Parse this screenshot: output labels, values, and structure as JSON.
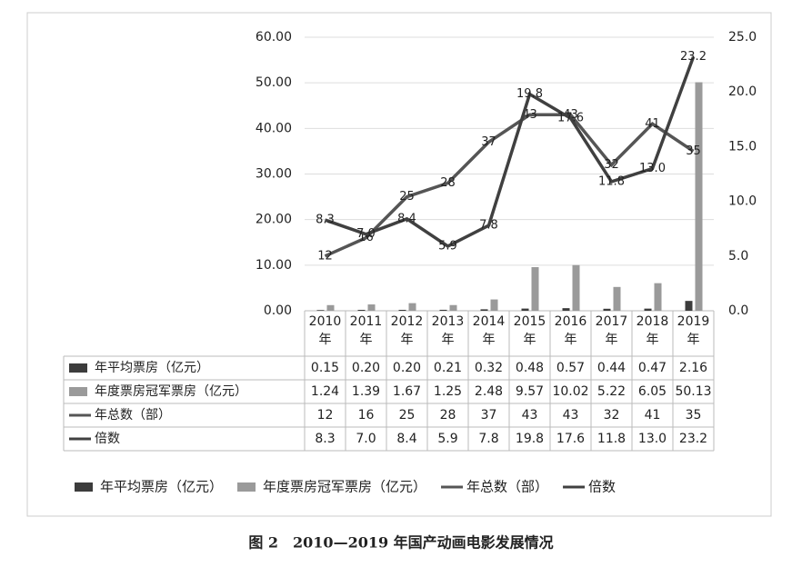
{
  "chart_data": {
    "type": "bar-line",
    "categories": [
      "2010年",
      "2011年",
      "2012年",
      "2013年",
      "2014年",
      "2015年",
      "2016年",
      "2017年",
      "2018年",
      "2019年"
    ],
    "series": [
      {
        "name": "年平均票房（亿元）",
        "type": "bar",
        "color": "#3c3c3c",
        "values": [
          0.15,
          0.2,
          0.2,
          0.21,
          0.32,
          0.48,
          0.57,
          0.44,
          0.47,
          2.16
        ],
        "value_labels": [
          "0.15",
          "0.20",
          "0.20",
          "0.21",
          "0.32",
          "0.48",
          "0.57",
          "0.44",
          "0.47",
          "2.16"
        ]
      },
      {
        "name": "年度票房冠军票房（亿元）",
        "type": "bar",
        "color": "#9a9a9a",
        "values": [
          1.24,
          1.39,
          1.67,
          1.25,
          2.48,
          9.57,
          10.02,
          5.22,
          6.05,
          50.13
        ],
        "value_labels": [
          "1.24",
          "1.39",
          "1.67",
          "1.25",
          "2.48",
          "9.57",
          "10.02",
          "5.22",
          "6.05",
          "50.13"
        ]
      },
      {
        "name": "年总数（部）",
        "type": "line",
        "color": "#555555",
        "values": [
          12,
          16,
          25,
          28,
          37,
          43,
          43,
          32,
          41,
          35
        ]
      },
      {
        "name": "倍数",
        "type": "line",
        "axis": "y2",
        "color": "#404040",
        "values": [
          8.3,
          7.0,
          8.4,
          5.9,
          7.8,
          19.8,
          17.6,
          11.8,
          13.0,
          23.2
        ],
        "value_labels": [
          "8.3",
          "7.0",
          "8.4",
          "5.9",
          "7.8",
          "19.8",
          "17.6",
          "11.8",
          "13.0",
          "23.2"
        ]
      }
    ],
    "ylim": [
      0,
      60
    ],
    "yticks": [
      {
        "value": 0,
        "label": "0.00"
      },
      {
        "value": 10,
        "label": "10.00"
      },
      {
        "value": 20,
        "label": "20.00"
      },
      {
        "value": 30,
        "label": "30.00"
      },
      {
        "value": 40,
        "label": "40.00"
      },
      {
        "value": 50,
        "label": "50.00"
      },
      {
        "value": 60,
        "label": "60.00"
      }
    ],
    "y2lim": [
      0,
      25
    ],
    "y2ticks": [
      {
        "value": 0,
        "label": "0.0"
      },
      {
        "value": 5,
        "label": "5.0"
      },
      {
        "value": 10,
        "label": "10.0"
      },
      {
        "value": 15,
        "label": "15.0"
      },
      {
        "value": 20,
        "label": "20.0"
      },
      {
        "value": 25,
        "label": "25.0"
      }
    ],
    "grid": true,
    "legend": "bottom",
    "caption": "图 2　2010—2019 年国产动画电影发展情况"
  }
}
